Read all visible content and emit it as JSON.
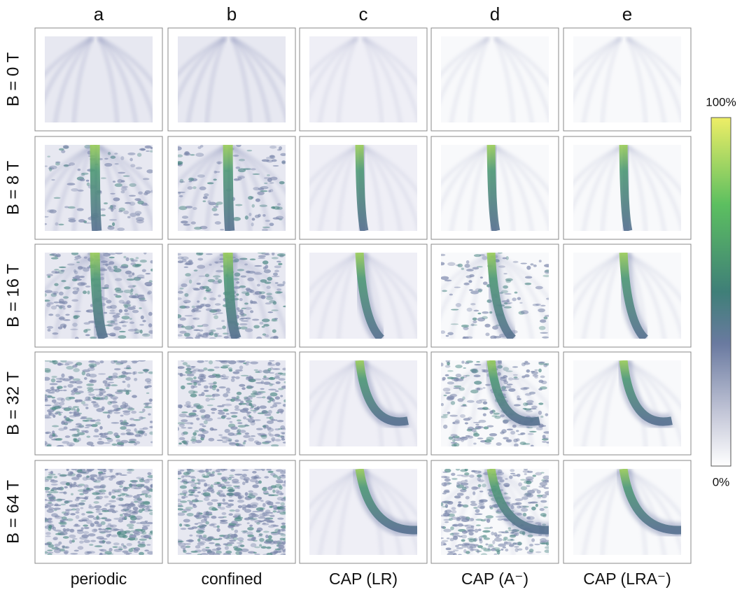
{
  "columns": [
    {
      "letter": "a",
      "label": "periodic"
    },
    {
      "letter": "b",
      "label": "confined"
    },
    {
      "letter": "c",
      "label": "CAP (LR)"
    },
    {
      "letter": "d",
      "label": "CAP (A⁻)"
    },
    {
      "letter": "e",
      "label": "CAP (LRA⁻)"
    }
  ],
  "rows": [
    "B = 0 T",
    "B = 8 T",
    "B = 16 T",
    "B = 32 T",
    "B = 64 T"
  ],
  "colorbar": {
    "max_label": "100%",
    "min_label": "0%"
  }
}
